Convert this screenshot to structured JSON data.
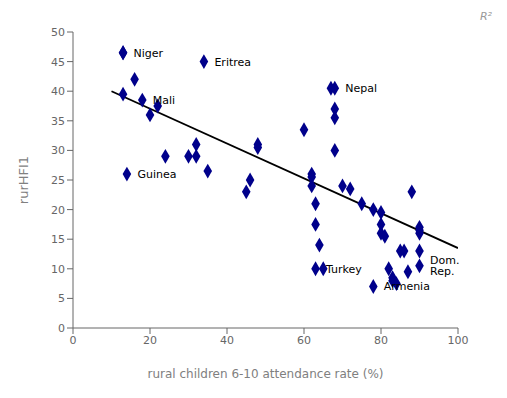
{
  "chart_data": {
    "type": "scatter",
    "xlabel": "rural children 6-10 attendance rate (%)",
    "ylabel": "rurHFI1",
    "points": [
      [
        13,
        46.5
      ],
      [
        13,
        39.5
      ],
      [
        16,
        42
      ],
      [
        20,
        36
      ],
      [
        22,
        37.5
      ],
      [
        24,
        29
      ],
      [
        30,
        29
      ],
      [
        32,
        31
      ],
      [
        32,
        29
      ],
      [
        35,
        26.5
      ],
      [
        45,
        23
      ],
      [
        46,
        25
      ],
      [
        48,
        31
      ],
      [
        48,
        30.5
      ],
      [
        60,
        33.5
      ],
      [
        62,
        26
      ],
      [
        62,
        25.5
      ],
      [
        62,
        24
      ],
      [
        63,
        21
      ],
      [
        63,
        17.5
      ],
      [
        64,
        14
      ],
      [
        65,
        10
      ],
      [
        67,
        40.5
      ],
      [
        68,
        37
      ],
      [
        68,
        35.5
      ],
      [
        68,
        30
      ],
      [
        70,
        24
      ],
      [
        72,
        23.5
      ],
      [
        75,
        21
      ],
      [
        78,
        20
      ],
      [
        80,
        19.5
      ],
      [
        80,
        17.5
      ],
      [
        80,
        16
      ],
      [
        81,
        15.5
      ],
      [
        82,
        10
      ],
      [
        83,
        8.5
      ],
      [
        83,
        8
      ],
      [
        84,
        7.5
      ],
      [
        85,
        13
      ],
      [
        86,
        13
      ],
      [
        87,
        9.5
      ],
      [
        88,
        23
      ],
      [
        90,
        17
      ],
      [
        90,
        16.5
      ],
      [
        90,
        16
      ],
      [
        90,
        13
      ]
    ],
    "labeled_points": [
      {
        "name": "Niger",
        "x": 13,
        "y": 46.5
      },
      {
        "name": "Mali",
        "x": 18,
        "y": 38.5
      },
      {
        "name": "Guinea",
        "x": 14,
        "y": 26
      },
      {
        "name": "Eritrea",
        "x": 34,
        "y": 45
      },
      {
        "name": "Nepal",
        "x": 68,
        "y": 40.5
      },
      {
        "name": "Turkey",
        "x": 63,
        "y": 10
      },
      {
        "name": "Armenia",
        "x": 78,
        "y": 7
      },
      {
        "name": "Dom. Rep.",
        "x": 90,
        "y": 10.5
      }
    ],
    "trendline": {
      "x": [
        10,
        100
      ],
      "y": [
        40.0,
        13.5
      ],
      "color": "#000000"
    },
    "color": "#00008B",
    "marker": "diamond",
    "annotations": [
      {
        "text": "R²",
        "color": "#999999"
      }
    ],
    "xlim": [
      0,
      100
    ],
    "ylim": [
      0,
      50
    ],
    "xticks": [
      0,
      20,
      40,
      60,
      80,
      100
    ],
    "yticks": [
      0,
      5,
      10,
      15,
      20,
      25,
      30,
      35,
      40,
      45,
      50
    ],
    "grid": false
  }
}
